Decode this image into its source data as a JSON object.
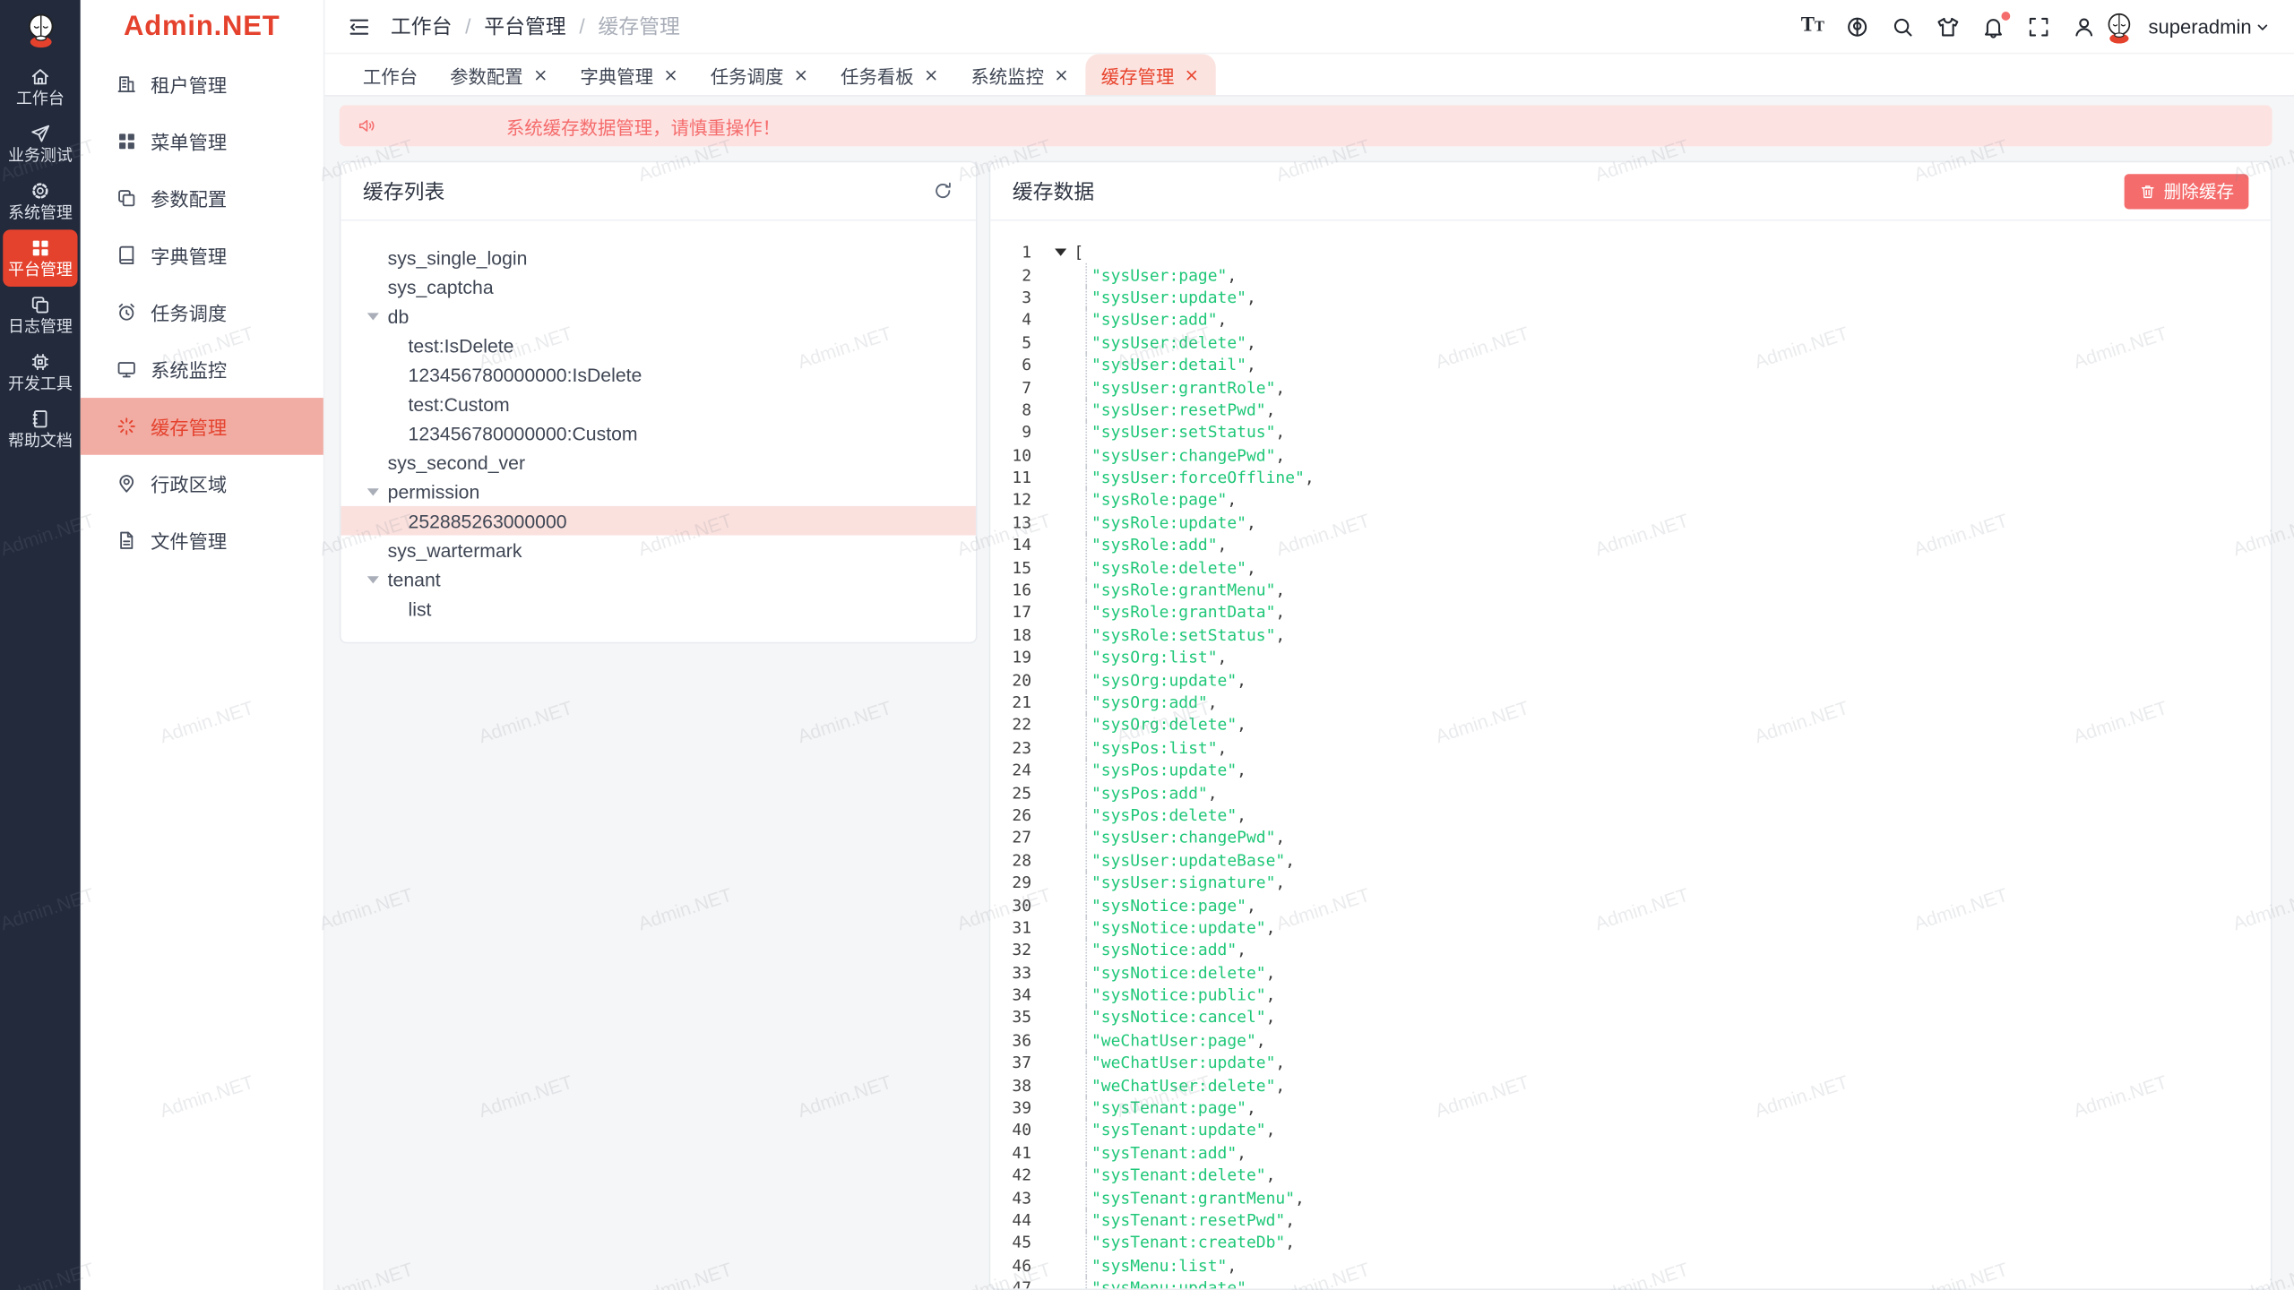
{
  "colors": {
    "primary": "#e5422e",
    "danger": "#f56c6c",
    "rail_bg": "#222a3b",
    "string_green": "#1fc778",
    "alert_bg": "#fde2e2",
    "tree_selected_bg": "#fae1de",
    "tab_active_bg": "#fbe3e0",
    "content_bg": "#f5f6f7"
  },
  "watermark": {
    "text": "Admin.NET"
  },
  "rail": {
    "logo_icon": "mascot-logo",
    "items": [
      {
        "label": "工作台",
        "icon": "home-icon",
        "active": false
      },
      {
        "label": "业务测试",
        "icon": "send-icon",
        "active": false
      },
      {
        "label": "系统管理",
        "icon": "gear-icon",
        "active": false
      },
      {
        "label": "平台管理",
        "icon": "grid-icon",
        "active": true
      },
      {
        "label": "日志管理",
        "icon": "copy-doc-icon",
        "active": false
      },
      {
        "label": "开发工具",
        "icon": "cpu-icon",
        "active": false
      },
      {
        "label": "帮助文档",
        "icon": "notebook-icon",
        "active": false
      }
    ]
  },
  "sidebar": {
    "logo": "Admin.NET",
    "items": [
      {
        "label": "租户管理",
        "icon": "building-icon",
        "active": false
      },
      {
        "label": "菜单管理",
        "icon": "grid-icon",
        "active": false
      },
      {
        "label": "参数配置",
        "icon": "copy-doc-icon",
        "active": false
      },
      {
        "label": "字典管理",
        "icon": "book-icon",
        "active": false
      },
      {
        "label": "任务调度",
        "icon": "alarm-icon",
        "active": false
      },
      {
        "label": "系统监控",
        "icon": "monitor-icon",
        "active": false
      },
      {
        "label": "缓存管理",
        "icon": "loading-icon",
        "active": true
      },
      {
        "label": "行政区域",
        "icon": "pin-icon",
        "active": false
      },
      {
        "label": "文件管理",
        "icon": "file-icon",
        "active": false
      }
    ]
  },
  "header": {
    "breadcrumb": [
      "工作台",
      "平台管理",
      "缓存管理"
    ],
    "username": "superadmin",
    "actions": [
      {
        "name": "font-size-icon",
        "glyph": "Tt",
        "badge": false
      },
      {
        "name": "language-icon",
        "badge": false
      },
      {
        "name": "search-icon",
        "badge": false
      },
      {
        "name": "theme-icon",
        "badge": false
      },
      {
        "name": "notification-icon",
        "badge": true
      },
      {
        "name": "fullscreen-icon",
        "badge": false
      },
      {
        "name": "profile-icon",
        "badge": false
      }
    ]
  },
  "tabs": [
    {
      "label": "工作台",
      "closable": false,
      "active": false
    },
    {
      "label": "参数配置",
      "closable": true,
      "active": false
    },
    {
      "label": "字典管理",
      "closable": true,
      "active": false
    },
    {
      "label": "任务调度",
      "closable": true,
      "active": false
    },
    {
      "label": "任务看板",
      "closable": true,
      "active": false
    },
    {
      "label": "系统监控",
      "closable": true,
      "active": false
    },
    {
      "label": "缓存管理",
      "closable": true,
      "active": true
    }
  ],
  "alert": {
    "text": "系统缓存数据管理，请慎重操作！"
  },
  "cache_list": {
    "title": "缓存列表",
    "tree": [
      {
        "label": "sys_single_login",
        "level": 0,
        "caret": false,
        "selected": false
      },
      {
        "label": "sys_captcha",
        "level": 0,
        "caret": false,
        "selected": false
      },
      {
        "label": "db",
        "level": 0,
        "caret": true,
        "selected": false
      },
      {
        "label": "test:IsDelete",
        "level": 1,
        "caret": false,
        "selected": false
      },
      {
        "label": "123456780000000:IsDelete",
        "level": 1,
        "caret": false,
        "selected": false
      },
      {
        "label": "test:Custom",
        "level": 1,
        "caret": false,
        "selected": false
      },
      {
        "label": "123456780000000:Custom",
        "level": 1,
        "caret": false,
        "selected": false
      },
      {
        "label": "sys_second_ver",
        "level": 0,
        "caret": false,
        "selected": false
      },
      {
        "label": "permission",
        "level": 0,
        "caret": true,
        "selected": false
      },
      {
        "label": "252885263000000",
        "level": 1,
        "caret": false,
        "selected": true
      },
      {
        "label": "sys_wartermark",
        "level": 0,
        "caret": false,
        "selected": false
      },
      {
        "label": "tenant",
        "level": 0,
        "caret": true,
        "selected": false
      },
      {
        "label": "list",
        "level": 1,
        "caret": false,
        "selected": false
      }
    ]
  },
  "cache_data": {
    "title": "缓存数据",
    "delete_label": "删除缓存",
    "open_bracket": "[",
    "strings": [
      "sysUser:page",
      "sysUser:update",
      "sysUser:add",
      "sysUser:delete",
      "sysUser:detail",
      "sysUser:grantRole",
      "sysUser:resetPwd",
      "sysUser:setStatus",
      "sysUser:changePwd",
      "sysUser:forceOffline",
      "sysRole:page",
      "sysRole:update",
      "sysRole:add",
      "sysRole:delete",
      "sysRole:grantMenu",
      "sysRole:grantData",
      "sysRole:setStatus",
      "sysOrg:list",
      "sysOrg:update",
      "sysOrg:add",
      "sysOrg:delete",
      "sysPos:list",
      "sysPos:update",
      "sysPos:add",
      "sysPos:delete",
      "sysUser:changePwd",
      "sysUser:updateBase",
      "sysUser:signature",
      "sysNotice:page",
      "sysNotice:update",
      "sysNotice:add",
      "sysNotice:delete",
      "sysNotice:public",
      "sysNotice:cancel",
      "weChatUser:page",
      "weChatUser:update",
      "weChatUser:delete",
      "sysTenant:page",
      "sysTenant:update",
      "sysTenant:add",
      "sysTenant:delete",
      "sysTenant:grantMenu",
      "sysTenant:resetPwd",
      "sysTenant:createDb",
      "sysMenu:list",
      "sysMenu:update"
    ]
  }
}
